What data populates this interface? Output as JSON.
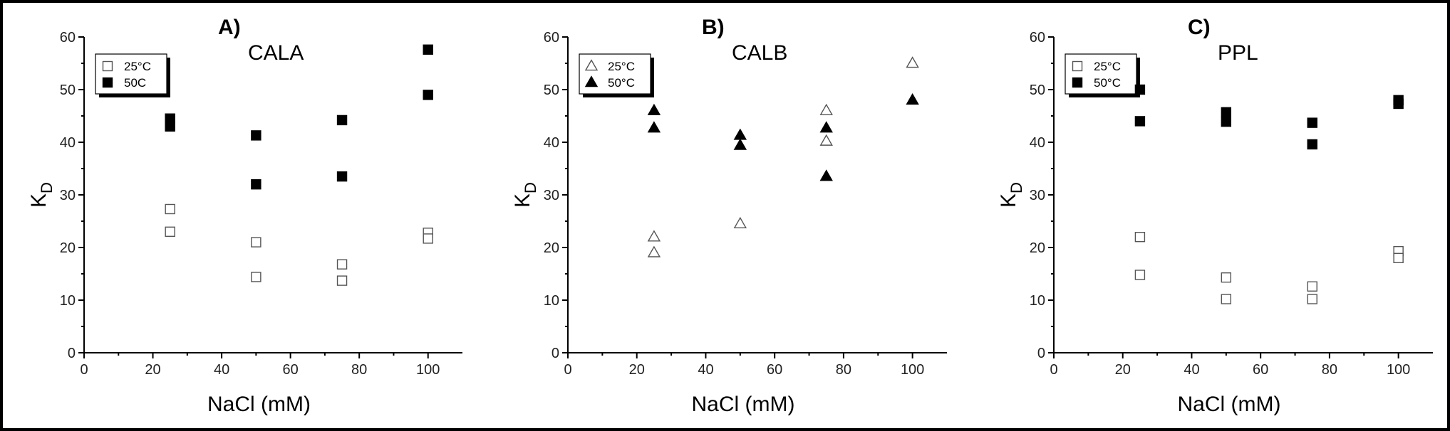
{
  "chart_data": [
    {
      "type": "scatter",
      "panel_letter": "A)",
      "title": "CALA",
      "xlabel": "NaCl (mM)",
      "ylabel": "K",
      "ylabel_sub": "D",
      "xlim": [
        0,
        110
      ],
      "ylim": [
        0,
        60
      ],
      "xticks": [
        0,
        20,
        40,
        60,
        80,
        100
      ],
      "yticks": [
        0,
        10,
        20,
        30,
        40,
        50,
        60
      ],
      "legend_position": "top-left",
      "series": [
        {
          "name": "25°C",
          "marker": "square-open",
          "points": [
            [
              25,
              27.3
            ],
            [
              25,
              23
            ],
            [
              50,
              21
            ],
            [
              50,
              14.4
            ],
            [
              75,
              16.8
            ],
            [
              75,
              13.7
            ],
            [
              100,
              22.8
            ],
            [
              100,
              21.7
            ]
          ]
        },
        {
          "name": "50C",
          "marker": "square-filled",
          "points": [
            [
              25,
              44.5
            ],
            [
              25,
              43
            ],
            [
              50,
              41.3
            ],
            [
              50,
              32
            ],
            [
              75,
              44.2
            ],
            [
              75,
              33.5
            ],
            [
              100,
              57.6
            ],
            [
              100,
              49
            ]
          ]
        }
      ]
    },
    {
      "type": "scatter",
      "panel_letter": "B)",
      "title": "CALB",
      "xlabel": "NaCl (mM)",
      "ylabel": "K",
      "ylabel_sub": "D",
      "xlim": [
        0,
        110
      ],
      "ylim": [
        0,
        60
      ],
      "xticks": [
        0,
        20,
        40,
        60,
        80,
        100
      ],
      "yticks": [
        0,
        10,
        20,
        30,
        40,
        50,
        60
      ],
      "legend_position": "top-left",
      "series": [
        {
          "name": "25°C",
          "marker": "triangle-open",
          "points": [
            [
              25,
              22
            ],
            [
              25,
              19
            ],
            [
              50,
              24.5
            ],
            [
              75,
              46
            ],
            [
              75,
              40.2
            ],
            [
              100,
              55
            ]
          ]
        },
        {
          "name": "50°C",
          "marker": "triangle-filled",
          "points": [
            [
              25,
              46
            ],
            [
              25,
              42.7
            ],
            [
              50,
              41.3
            ],
            [
              50,
              39.4
            ],
            [
              75,
              42.7
            ],
            [
              75,
              33.5
            ],
            [
              100,
              48
            ]
          ]
        }
      ]
    },
    {
      "type": "scatter",
      "panel_letter": "C)",
      "title": "PPL",
      "xlabel": "NaCl (mM)",
      "ylabel": "K",
      "ylabel_sub": "D",
      "xlim": [
        0,
        110
      ],
      "ylim": [
        0,
        60
      ],
      "xticks": [
        0,
        20,
        40,
        60,
        80,
        100
      ],
      "yticks": [
        0,
        10,
        20,
        30,
        40,
        50,
        60
      ],
      "legend_position": "top-left",
      "series": [
        {
          "name": "25°C",
          "marker": "square-open",
          "points": [
            [
              25,
              22
            ],
            [
              25,
              14.8
            ],
            [
              50,
              14.3
            ],
            [
              50,
              10.2
            ],
            [
              75,
              12.6
            ],
            [
              75,
              10.2
            ],
            [
              100,
              19.3
            ],
            [
              100,
              18
            ]
          ]
        },
        {
          "name": "50°C",
          "marker": "square-filled",
          "points": [
            [
              25,
              50
            ],
            [
              25,
              44
            ],
            [
              50,
              45.7
            ],
            [
              50,
              43.9
            ],
            [
              75,
              43.7
            ],
            [
              75,
              39.6
            ],
            [
              100,
              48
            ],
            [
              100,
              47.3
            ]
          ]
        }
      ]
    }
  ]
}
